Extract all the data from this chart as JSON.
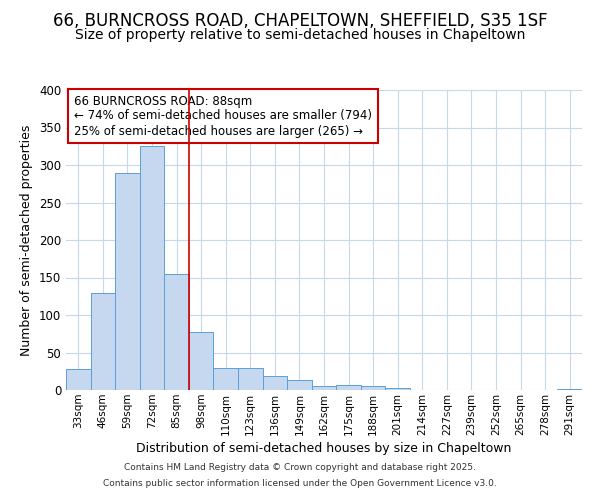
{
  "title1": "66, BURNCROSS ROAD, CHAPELTOWN, SHEFFIELD, S35 1SF",
  "title2": "Size of property relative to semi-detached houses in Chapeltown",
  "xlabel": "Distribution of semi-detached houses by size in Chapeltown",
  "ylabel": "Number of semi-detached properties",
  "categories": [
    "33sqm",
    "46sqm",
    "59sqm",
    "72sqm",
    "85sqm",
    "98sqm",
    "110sqm",
    "123sqm",
    "136sqm",
    "149sqm",
    "162sqm",
    "175sqm",
    "188sqm",
    "201sqm",
    "214sqm",
    "227sqm",
    "239sqm",
    "252sqm",
    "265sqm",
    "278sqm",
    "291sqm"
  ],
  "values": [
    28,
    130,
    290,
    325,
    155,
    78,
    30,
    30,
    19,
    13,
    5,
    7,
    5,
    3,
    0,
    0,
    0,
    0,
    0,
    0,
    2
  ],
  "bar_color": "#c5d8f0",
  "bar_edge_color": "#5a9fd4",
  "red_line_x": 4.5,
  "annotation_title": "66 BURNCROSS ROAD: 88sqm",
  "annotation_line1": "← 74% of semi-detached houses are smaller (794)",
  "annotation_line2": "25% of semi-detached houses are larger (265) →",
  "annotation_box_color": "#ffffff",
  "annotation_box_edge": "#cc0000",
  "footer1": "Contains HM Land Registry data © Crown copyright and database right 2025.",
  "footer2": "Contains public sector information licensed under the Open Government Licence v3.0.",
  "ylim": [
    0,
    400
  ],
  "yticks": [
    0,
    50,
    100,
    150,
    200,
    250,
    300,
    350,
    400
  ],
  "background_color": "#ffffff",
  "plot_background": "#ffffff",
  "grid_color": "#c8d8ec",
  "title_fontsize": 12,
  "subtitle_fontsize": 10
}
